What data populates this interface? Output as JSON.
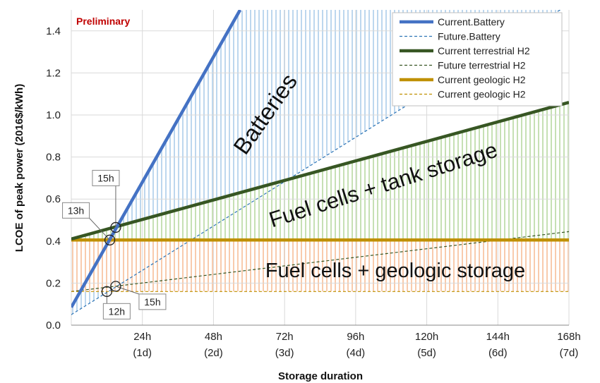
{
  "chart_data": {
    "type": "line",
    "annotation_text": "Preliminary",
    "xlabel": "Storage duration",
    "ylabel": "LCOE of peak power (2016$/kWh)",
    "xlim": [
      0,
      168
    ],
    "ylim": [
      0,
      1.5
    ],
    "grid": true,
    "legend_position": "top-right",
    "x_ticks": [
      {
        "value": 24,
        "label": "24h",
        "sublabel": "(1d)"
      },
      {
        "value": 48,
        "label": "48h",
        "sublabel": "(2d)"
      },
      {
        "value": 72,
        "label": "72h",
        "sublabel": "(3d)"
      },
      {
        "value": 96,
        "label": "96h",
        "sublabel": "(4d)"
      },
      {
        "value": 120,
        "label": "120h",
        "sublabel": "(5d)"
      },
      {
        "value": 144,
        "label": "144h",
        "sublabel": "(6d)"
      },
      {
        "value": 168,
        "label": "168h",
        "sublabel": "(7d)"
      }
    ],
    "y_ticks": [
      "0.0",
      "0.2",
      "0.4",
      "0.6",
      "0.8",
      "1.0",
      "1.2",
      "1.4"
    ],
    "series": [
      {
        "name": "Current.Battery",
        "x": [
          0,
          57
        ],
        "y": [
          0.085,
          1.5
        ],
        "color": "#4472c4",
        "style": "solid",
        "width": 4.5
      },
      {
        "name": "Future.Battery",
        "x": [
          0,
          165
        ],
        "y": [
          0.05,
          1.5
        ],
        "color": "#2e75b6",
        "style": "dashed",
        "width": 1.2
      },
      {
        "name": "Current terrestrial H2",
        "x": [
          0,
          168
        ],
        "y": [
          0.41,
          1.06
        ],
        "color": "#375623",
        "style": "solid",
        "width": 4.5
      },
      {
        "name": "Future terrestrial H2",
        "x": [
          0,
          168
        ],
        "y": [
          0.16,
          0.445
        ],
        "color": "#375623",
        "style": "dashed",
        "width": 1.2
      },
      {
        "name": "Current geologic H2",
        "x": [
          0,
          168
        ],
        "y": [
          0.405,
          0.405
        ],
        "color": "#bf9000",
        "style": "solid",
        "width": 4.5
      },
      {
        "name": "Current geologic H2",
        "x": [
          0,
          168
        ],
        "y": [
          0.16,
          0.16
        ],
        "color": "#bf9000",
        "style": "dashed",
        "width": 1.2
      }
    ],
    "regions": [
      {
        "label": "Batteries"
      },
      {
        "label": "Fuel cells + tank storage"
      },
      {
        "label": "Fuel cells + geologic storage"
      }
    ],
    "callouts": [
      {
        "label": "13h",
        "x": 13,
        "y": 0.405
      },
      {
        "label": "15h",
        "x": 15,
        "y": 0.465
      },
      {
        "label": "12h",
        "x": 12,
        "y": 0.16
      },
      {
        "label": "15h",
        "x": 15,
        "y": 0.185
      }
    ]
  }
}
